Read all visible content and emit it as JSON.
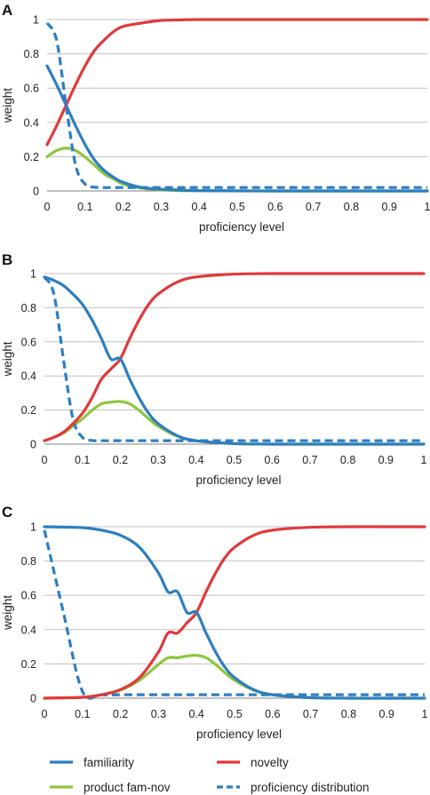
{
  "chart_data": [
    {
      "panel": "A",
      "type": "line",
      "xlabel": "proficiency level",
      "ylabel": "weight",
      "xlim": [
        0,
        1
      ],
      "ylim": [
        0,
        1
      ],
      "x_ticks": [
        "0",
        "0.1",
        "0.2",
        "0.3",
        "0.4",
        "0.5",
        "0.6",
        "0.7",
        "0.8",
        "0.9",
        "1"
      ],
      "y_ticks": [
        "0",
        "0.2",
        "0.4",
        "0.6",
        "0.8",
        "1"
      ],
      "grid": "horizontal",
      "x": [
        0,
        0.025,
        0.05,
        0.075,
        0.1,
        0.125,
        0.15,
        0.175,
        0.2,
        0.25,
        0.3,
        0.35,
        0.4,
        0.5,
        0.6,
        0.7,
        0.8,
        0.9,
        1.0
      ],
      "series": [
        {
          "name": "familiarity",
          "color": "#2E7EC1",
          "dash": false,
          "values": [
            0.73,
            0.62,
            0.5,
            0.38,
            0.27,
            0.18,
            0.12,
            0.08,
            0.05,
            0.02,
            0.01,
            0.005,
            0.002,
            0.001,
            0,
            0,
            0,
            0,
            0
          ]
        },
        {
          "name": "novelty",
          "color": "#E0393B",
          "dash": false,
          "values": [
            0.27,
            0.38,
            0.5,
            0.62,
            0.73,
            0.82,
            0.88,
            0.93,
            0.96,
            0.98,
            0.995,
            0.998,
            1.0,
            1.0,
            1.0,
            1.0,
            1.0,
            1.0,
            1.0
          ]
        },
        {
          "name": "product fam-nov",
          "color": "#8CC63F",
          "dash": false,
          "values": [
            0.2,
            0.236,
            0.25,
            0.236,
            0.197,
            0.15,
            0.1,
            0.07,
            0.04,
            0.016,
            0.006,
            0.002,
            0.001,
            0,
            0,
            0,
            0,
            0,
            0
          ]
        },
        {
          "name": "proficiency distribution",
          "color": "#2E7EC1",
          "dash": true,
          "values": [
            0.98,
            0.88,
            0.5,
            0.15,
            0.04,
            0.022,
            0.02,
            0.02,
            0.02,
            0.02,
            0.02,
            0.02,
            0.02,
            0.02,
            0.02,
            0.02,
            0.02,
            0.02,
            0.02
          ]
        }
      ]
    },
    {
      "panel": "B",
      "type": "line",
      "xlabel": "proficiency level",
      "ylabel": "weight",
      "xlim": [
        0,
        1
      ],
      "ylim": [
        0,
        1
      ],
      "x_ticks": [
        "0",
        "0.1",
        "0.2",
        "0.3",
        "0.4",
        "0.5",
        "0.6",
        "0.7",
        "0.8",
        "0.9",
        "1"
      ],
      "y_ticks": [
        "0",
        "0.2",
        "0.4",
        "0.6",
        "0.8",
        "1"
      ],
      "grid": "horizontal",
      "x": [
        0,
        0.025,
        0.05,
        0.075,
        0.1,
        0.125,
        0.15,
        0.175,
        0.2,
        0.225,
        0.25,
        0.275,
        0.3,
        0.35,
        0.4,
        0.5,
        0.6,
        0.7,
        0.8,
        0.9,
        1.0
      ],
      "series": [
        {
          "name": "familiarity",
          "color": "#2E7EC1",
          "dash": false,
          "values": [
            0.98,
            0.96,
            0.93,
            0.88,
            0.82,
            0.73,
            0.62,
            0.5,
            0.5,
            0.38,
            0.27,
            0.18,
            0.12,
            0.05,
            0.02,
            0.003,
            0,
            0,
            0,
            0,
            0
          ]
        },
        {
          "name": "novelty",
          "color": "#E0393B",
          "dash": false,
          "values": [
            0.02,
            0.04,
            0.07,
            0.12,
            0.18,
            0.27,
            0.38,
            0.44,
            0.5,
            0.62,
            0.73,
            0.82,
            0.88,
            0.95,
            0.98,
            0.997,
            1.0,
            1.0,
            1.0,
            1.0,
            1.0
          ]
        },
        {
          "name": "product fam-nov",
          "color": "#8CC63F",
          "dash": false,
          "values": [
            0.02,
            0.04,
            0.065,
            0.105,
            0.148,
            0.197,
            0.236,
            0.246,
            0.25,
            0.236,
            0.197,
            0.148,
            0.105,
            0.047,
            0.02,
            0.003,
            0,
            0,
            0,
            0,
            0
          ]
        },
        {
          "name": "proficiency distribution",
          "color": "#2E7EC1",
          "dash": true,
          "values": [
            0.98,
            0.88,
            0.5,
            0.15,
            0.04,
            0.022,
            0.02,
            0.02,
            0.02,
            0.02,
            0.02,
            0.02,
            0.02,
            0.02,
            0.02,
            0.02,
            0.02,
            0.02,
            0.02,
            0.02,
            0.02
          ]
        }
      ]
    },
    {
      "panel": "C",
      "type": "line",
      "xlabel": "proficiency level",
      "ylabel": "weight",
      "xlim": [
        0,
        1
      ],
      "ylim": [
        0,
        1
      ],
      "x_ticks": [
        "0",
        "0.1",
        "0.2",
        "0.3",
        "0.4",
        "0.5",
        "0.6",
        "0.7",
        "0.8",
        "0.9",
        "1"
      ],
      "y_ticks": [
        "0",
        "0.2",
        "0.4",
        "0.6",
        "0.8",
        "1"
      ],
      "grid": "horizontal",
      "x": [
        0,
        0.05,
        0.1,
        0.15,
        0.2,
        0.25,
        0.3,
        0.325,
        0.35,
        0.375,
        0.4,
        0.425,
        0.45,
        0.475,
        0.5,
        0.55,
        0.6,
        0.7,
        0.8,
        0.9,
        1.0
      ],
      "series": [
        {
          "name": "familiarity",
          "color": "#2E7EC1",
          "dash": false,
          "values": [
            1.0,
            0.998,
            0.995,
            0.98,
            0.95,
            0.88,
            0.73,
            0.62,
            0.62,
            0.5,
            0.5,
            0.38,
            0.27,
            0.18,
            0.12,
            0.05,
            0.02,
            0.003,
            0,
            0,
            0
          ]
        },
        {
          "name": "novelty",
          "color": "#E0393B",
          "dash": false,
          "values": [
            0,
            0.002,
            0.005,
            0.02,
            0.05,
            0.12,
            0.27,
            0.38,
            0.38,
            0.44,
            0.5,
            0.62,
            0.73,
            0.82,
            0.88,
            0.95,
            0.98,
            0.997,
            1.0,
            1.0,
            1.0
          ]
        },
        {
          "name": "product fam-nov",
          "color": "#8CC63F",
          "dash": false,
          "values": [
            0,
            0.002,
            0.005,
            0.02,
            0.047,
            0.105,
            0.197,
            0.236,
            0.236,
            0.246,
            0.25,
            0.236,
            0.197,
            0.148,
            0.105,
            0.047,
            0.02,
            0.003,
            0,
            0,
            0
          ]
        },
        {
          "name": "proficiency distribution",
          "color": "#2E7EC1",
          "dash": true,
          "values": [
            0.98,
            0.5,
            0.04,
            0.02,
            0.02,
            0.02,
            0.02,
            0.02,
            0.02,
            0.02,
            0.02,
            0.02,
            0.02,
            0.02,
            0.02,
            0.02,
            0.02,
            0.02,
            0.02,
            0.02,
            0.02
          ]
        }
      ]
    }
  ],
  "legend": {
    "placement": "bottom",
    "items": [
      {
        "name": "familiarity",
        "color": "#2E7EC1",
        "dash": false
      },
      {
        "name": "novelty",
        "color": "#E0393B",
        "dash": false
      },
      {
        "name": "product fam-nov",
        "color": "#8CC63F",
        "dash": false
      },
      {
        "name": "proficiency distribution",
        "color": "#2E7EC1",
        "dash": true
      }
    ]
  },
  "colors": {
    "gridline": "#BFBFBF",
    "axis": "#808080"
  }
}
